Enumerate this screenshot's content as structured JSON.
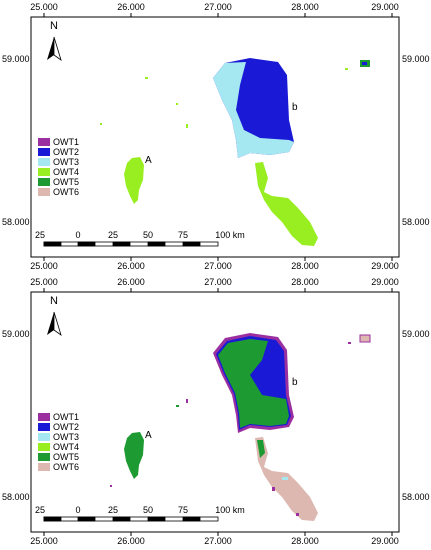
{
  "map": {
    "lon_ticks": [
      "25.000",
      "26.000",
      "27.000",
      "28.000",
      "29.000"
    ],
    "lat_ticks": [
      "59.000",
      "58.000"
    ],
    "north_label": "N",
    "lake_labels": {
      "a": "A",
      "b": "b"
    },
    "scale_bar": {
      "labels": [
        "25",
        "0",
        "25",
        "50",
        "75",
        "100 km"
      ]
    },
    "legend": [
      {
        "label": "OWT1",
        "color": "#9c2fa0"
      },
      {
        "label": "OWT2",
        "color": "#1a1ad6"
      },
      {
        "label": "OWT3",
        "color": "#a6e8f2"
      },
      {
        "label": "OWT4",
        "color": "#99ee22"
      },
      {
        "label": "OWT5",
        "color": "#1d9a32"
      },
      {
        "label": "OWT6",
        "color": "#dcb8b0"
      }
    ]
  },
  "panels": [
    {
      "id": "top",
      "large_lake_main": "#1a1ad6",
      "large_lake_secondary": "#a6e8f2",
      "south_lake": "#99ee22",
      "small_lake": "#99ee22",
      "rim": "#1a1ad6"
    },
    {
      "id": "bottom",
      "large_lake_main": "#1d9a32",
      "large_lake_secondary": "#1a1ad6",
      "south_lake": "#dcb8b0",
      "small_lake": "#1d9a32",
      "rim": "#9c2fa0"
    }
  ]
}
